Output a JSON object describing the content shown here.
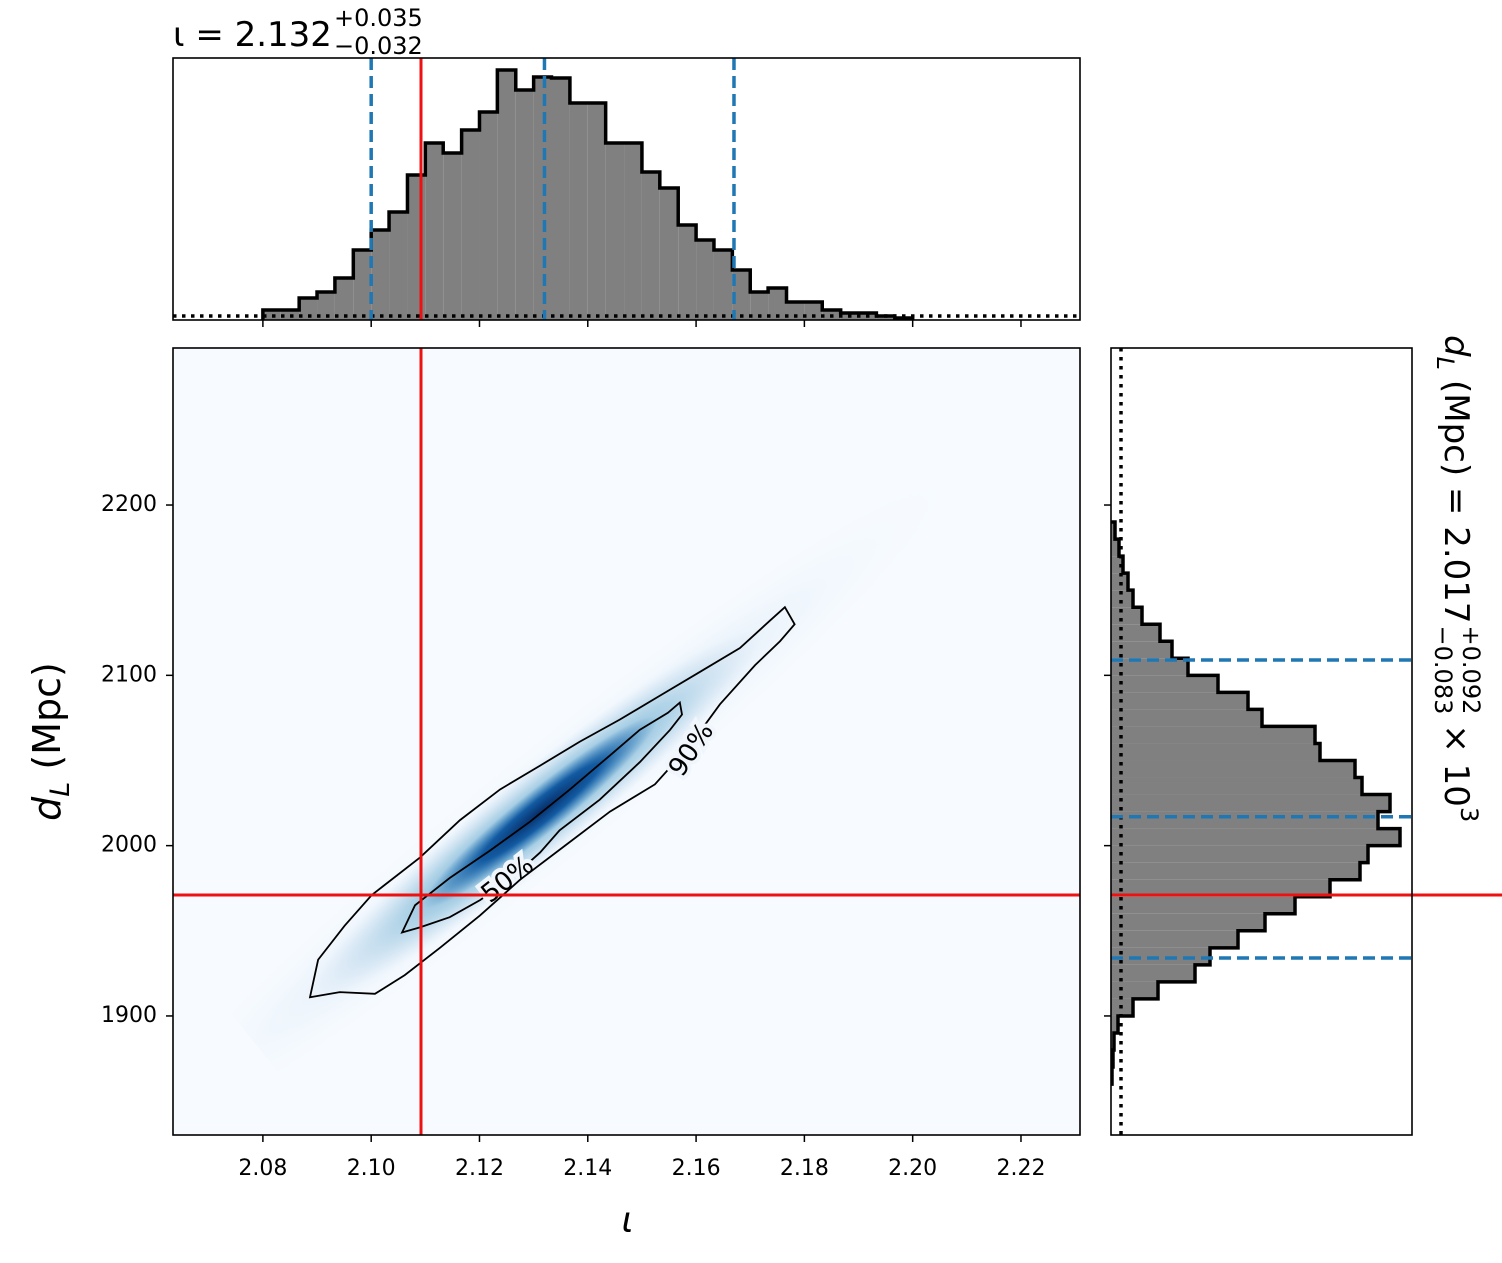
{
  "chart_data": [
    {
      "type": "histogram",
      "orientation": "vertical",
      "title": {
        "text": "ι = 2.132",
        "sup": "+0.035",
        "sub": "−0.032"
      },
      "bins": [
        2.08,
        2.0833,
        2.0867,
        2.09,
        2.0933,
        2.0967,
        2.1,
        2.1033,
        2.1067,
        2.11,
        2.1133,
        2.1167,
        2.12,
        2.1233,
        2.1267,
        2.13,
        2.1333,
        2.1367,
        2.14,
        2.1433,
        2.1467,
        2.15,
        2.1533,
        2.1567,
        2.16,
        2.1633,
        2.1667,
        2.17,
        2.1733,
        2.1767,
        2.18,
        2.1833,
        2.1867,
        2.19,
        2.1933,
        2.1967,
        2.2
      ],
      "values": [
        10,
        10,
        22,
        28,
        42,
        70,
        90,
        108,
        145,
        177,
        167,
        190,
        208,
        250,
        230,
        243,
        242,
        217,
        217,
        177,
        177,
        148,
        132,
        95,
        80,
        70,
        50,
        28,
        32,
        18,
        18,
        10,
        7,
        7,
        4,
        2
      ],
      "xlim": [
        2.0634,
        2.2309
      ],
      "ylim": [
        0,
        262
      ],
      "xticks": [
        2.08,
        2.1,
        2.12,
        2.14,
        2.16,
        2.18,
        2.2,
        2.22
      ],
      "quantiles": [
        2.1,
        2.132,
        2.167
      ],
      "truth": 2.1092,
      "prior": 4,
      "color": "#808080",
      "quantile_color": "#1f77b4",
      "truth_color": "#ee1111"
    },
    {
      "type": "contour",
      "xlabel": "ι",
      "ylabel": {
        "symbol": "d",
        "symbol_sub": "L",
        "text": "(Mpc)"
      },
      "xlim": [
        2.0634,
        2.2309
      ],
      "ylim": [
        1830.1,
        2292.2
      ],
      "xticks": [
        2.08,
        {
          "value": 2.1,
          "label": "2.10"
        },
        2.12,
        2.14,
        2.16,
        2.18,
        {
          "value": 2.2,
          "label": "2.20"
        },
        2.22
      ],
      "yticks": [
        1900,
        2000,
        2100,
        2200
      ],
      "contours": [
        {
          "label": "50%",
          "x": [
            2.1057,
            2.1081,
            2.1145,
            2.1219,
            2.1293,
            2.1367,
            2.1441,
            2.1496,
            2.1548,
            2.157,
            2.1574,
            2.1552,
            2.1496,
            2.1422,
            2.1348,
            2.1312,
            2.1256,
            2.1201,
            2.1145,
            2.109
          ],
          "y": [
            1949,
            1965,
            1981,
            1997,
            2014,
            2033,
            2053,
            2068,
            2078,
            2084,
            2077,
            2068,
            2049,
            2027,
            2009,
            1996,
            1980,
            1968,
            1958,
            1952
          ]
        },
        {
          "label": "90%",
          "x": [
            2.0887,
            2.0902,
            2.0951,
            2.1001,
            2.109,
            2.1164,
            2.1238,
            2.1312,
            2.1385,
            2.1459,
            2.1533,
            2.1607,
            2.1681,
            2.1736,
            2.1764,
            2.1782,
            2.1755,
            2.1709,
            2.1644,
            2.1589,
            2.1524,
            2.1441,
            2.1358,
            2.1275,
            2.1201,
            2.1127,
            2.1062,
            2.1007,
            2.0942
          ],
          "y": [
            1911,
            1933,
            1953,
            1971,
            1993,
            2015,
            2033,
            2047,
            2061,
            2074,
            2088,
            2102,
            2116,
            2132,
            2140,
            2130,
            2120,
            2106,
            2083,
            2059,
            2036,
            2020,
            2000,
            1980,
            1959,
            1940,
            1924,
            1913,
            1914
          ]
        }
      ],
      "truth": {
        "x": 2.1092,
        "y": 1971
      },
      "truth_color": "#ee1111",
      "contour_color": "#000000"
    },
    {
      "type": "histogram",
      "orientation": "horizontal",
      "title": {
        "symbol": "d",
        "symbol_sub": "L",
        "text": "(Mpc) = 2.017",
        "sup": "+0.092",
        "sub": "−0.083",
        "suffix": "× 10",
        "suffix_sup": "3"
      },
      "bins": [
        1860,
        1870,
        1880,
        1890,
        1900,
        1910,
        1920,
        1930,
        1940,
        1950,
        1960,
        1970,
        1980,
        1990,
        2000,
        2010,
        2020,
        2030,
        2040,
        2050,
        2060,
        2070,
        2080,
        2090,
        2100,
        2110,
        2120,
        2130,
        2140,
        2150,
        2160,
        2170,
        2180,
        2190
      ],
      "values": [
        1,
        2,
        3,
        7,
        22,
        47,
        84,
        99,
        127,
        154,
        184,
        219,
        249,
        257,
        289,
        267,
        279,
        251,
        244,
        209,
        204,
        151,
        137,
        107,
        77,
        61,
        49,
        31,
        22,
        17,
        12,
        8,
        4
      ],
      "xlim": [
        0,
        301
      ],
      "ylim": [
        1830.1,
        2292.2
      ],
      "yticks": [
        1900,
        2000,
        2100,
        2200
      ],
      "quantiles": [
        1934,
        2017,
        2109
      ],
      "truth": 1971,
      "prior": 10,
      "color": "#808080",
      "quantile_color": "#1f77b4",
      "truth_color": "#ee1111"
    }
  ]
}
